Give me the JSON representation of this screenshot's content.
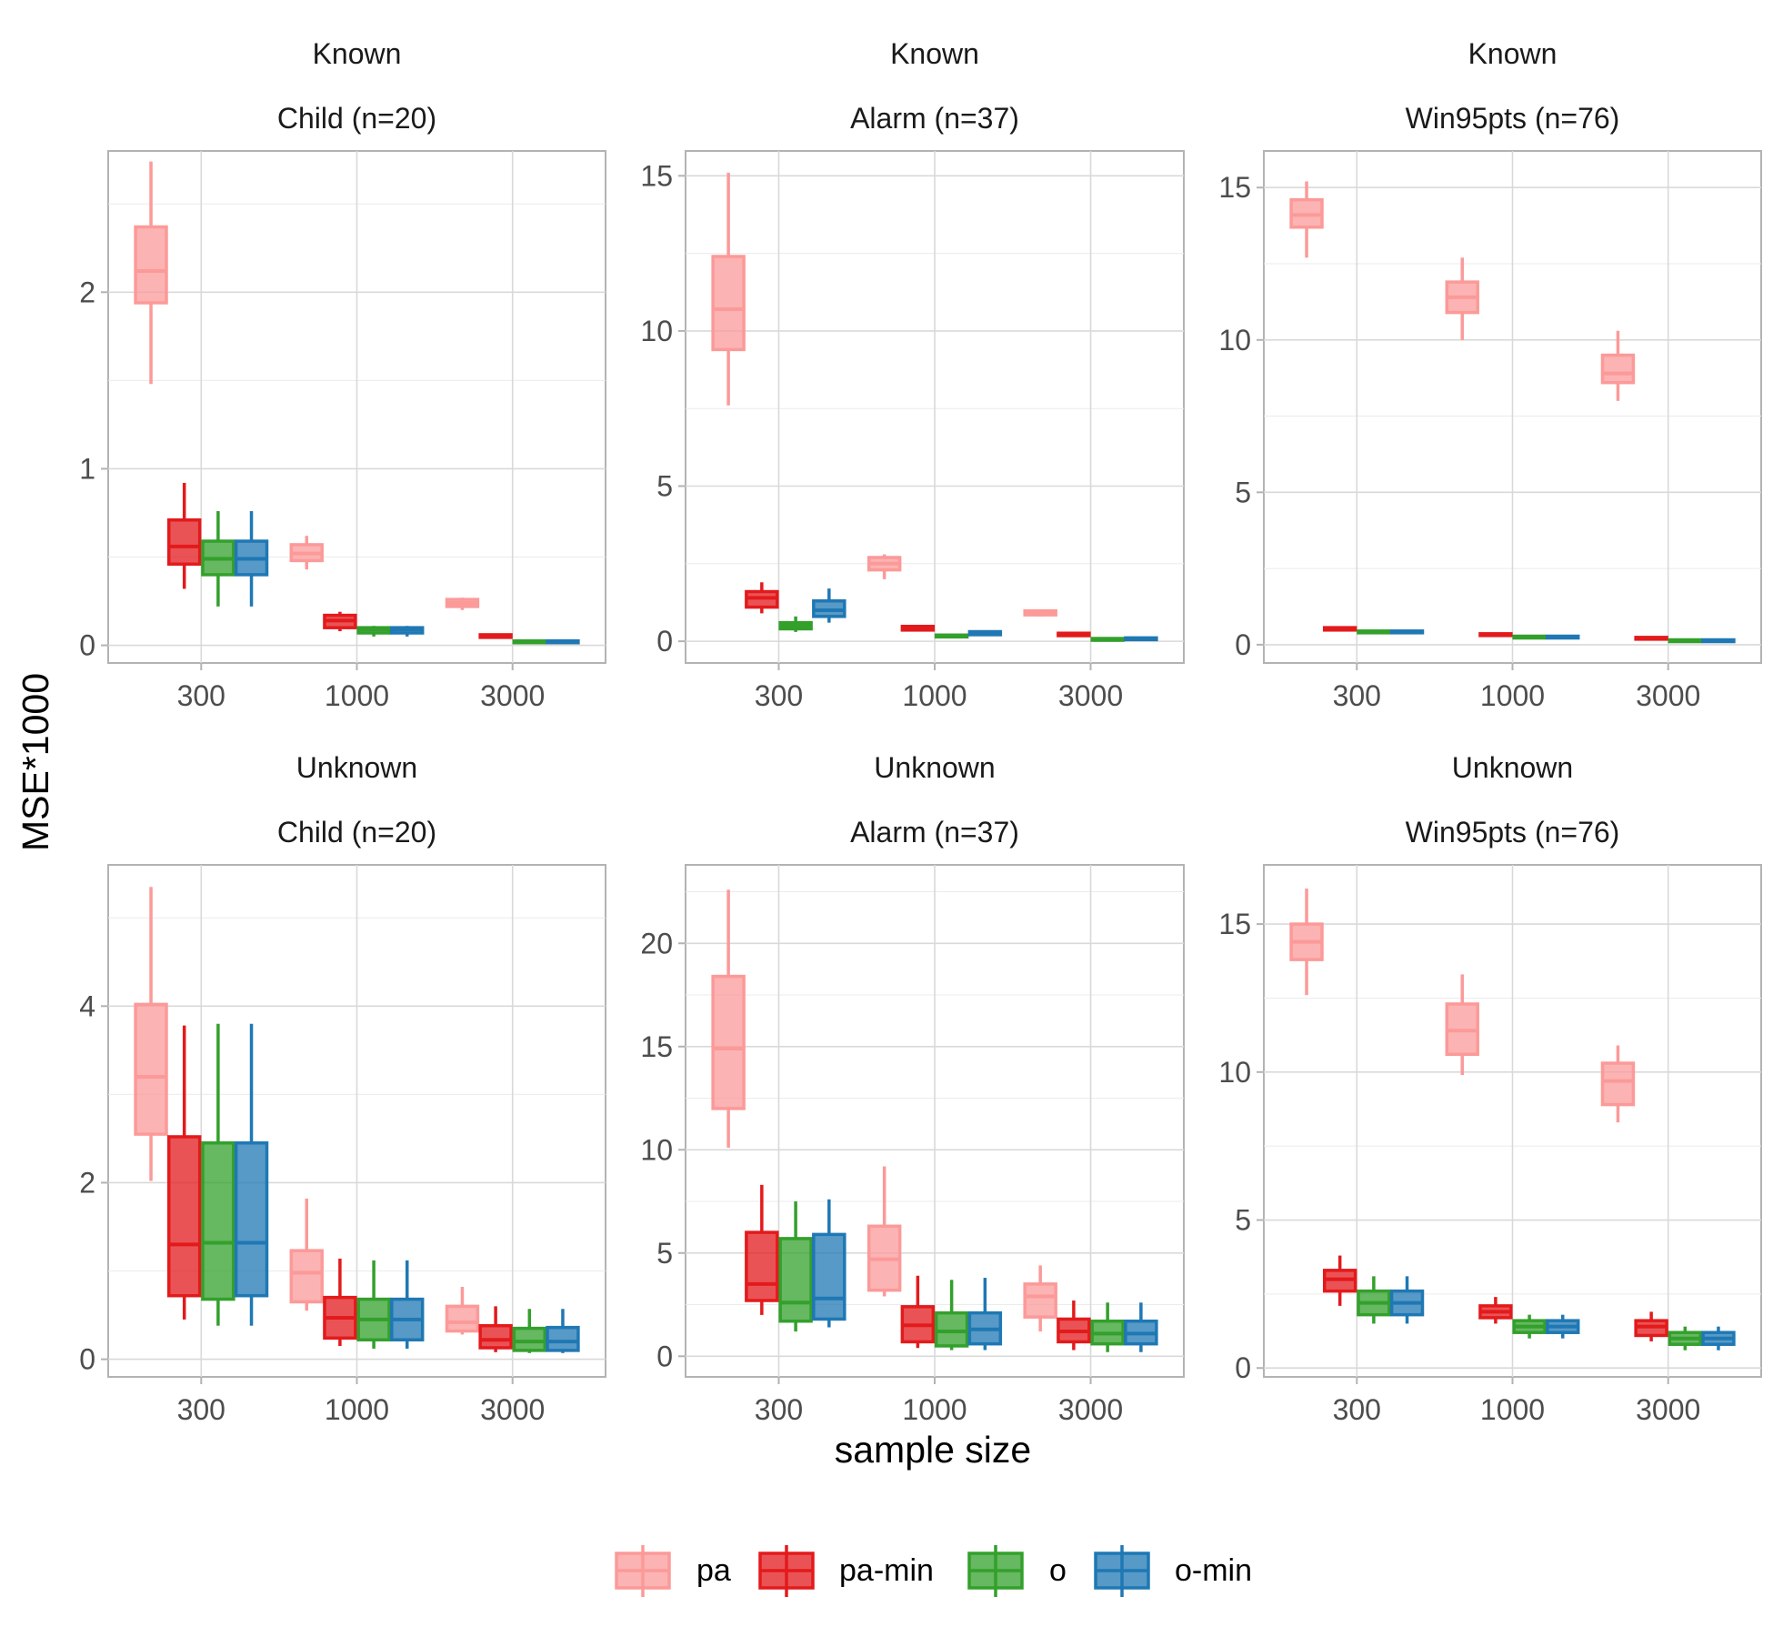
{
  "chart_data": {
    "type": "boxplot",
    "ylabel": "MSE*1000",
    "xlabel": "sample size",
    "categories": [
      "300",
      "1000",
      "3000"
    ],
    "legend": [
      {
        "name": "pa",
        "color": "#FB9A99"
      },
      {
        "name": "pa-min",
        "color": "#E31A1C"
      },
      {
        "name": "o",
        "color": "#33A02C"
      },
      {
        "name": "o-min",
        "color": "#1F78B4"
      }
    ],
    "panels": [
      {
        "row_label": "Known",
        "title": "Child (n=20)",
        "ylim": [
          -0.1,
          2.8
        ],
        "yticks": [
          0,
          1,
          2
        ],
        "boxes": [
          {
            "method": "pa",
            "category": "300",
            "min": 1.48,
            "q1": 1.94,
            "median": 2.12,
            "q3": 2.37,
            "max": 2.74
          },
          {
            "method": "pa-min",
            "category": "300",
            "min": 0.32,
            "q1": 0.46,
            "median": 0.56,
            "q3": 0.71,
            "max": 0.92
          },
          {
            "method": "o",
            "category": "300",
            "min": 0.22,
            "q1": 0.4,
            "median": 0.49,
            "q3": 0.59,
            "max": 0.76
          },
          {
            "method": "o-min",
            "category": "300",
            "min": 0.22,
            "q1": 0.4,
            "median": 0.49,
            "q3": 0.59,
            "max": 0.76
          },
          {
            "method": "pa",
            "category": "1000",
            "min": 0.43,
            "q1": 0.48,
            "median": 0.52,
            "q3": 0.57,
            "max": 0.62
          },
          {
            "method": "pa-min",
            "category": "1000",
            "min": 0.08,
            "q1": 0.1,
            "median": 0.14,
            "q3": 0.17,
            "max": 0.19
          },
          {
            "method": "o",
            "category": "1000",
            "min": 0.05,
            "q1": 0.07,
            "median": 0.09,
            "q3": 0.1,
            "max": 0.11
          },
          {
            "method": "o-min",
            "category": "1000",
            "min": 0.05,
            "q1": 0.07,
            "median": 0.09,
            "q3": 0.1,
            "max": 0.11
          },
          {
            "method": "pa",
            "category": "3000",
            "min": 0.2,
            "q1": 0.22,
            "median": 0.24,
            "q3": 0.26,
            "max": 0.27
          },
          {
            "method": "pa-min",
            "category": "3000",
            "min": 0.04,
            "q1": 0.045,
            "median": 0.05,
            "q3": 0.06,
            "max": 0.065
          },
          {
            "method": "o",
            "category": "3000",
            "min": 0.01,
            "q1": 0.015,
            "median": 0.02,
            "q3": 0.025,
            "max": 0.03
          },
          {
            "method": "o-min",
            "category": "3000",
            "min": 0.01,
            "q1": 0.015,
            "median": 0.02,
            "q3": 0.025,
            "max": 0.03
          }
        ]
      },
      {
        "row_label": "Known",
        "title": "Alarm (n=37)",
        "ylim": [
          -0.7,
          15.8
        ],
        "yticks": [
          0,
          5,
          10,
          15
        ],
        "boxes": [
          {
            "method": "pa",
            "category": "300",
            "min": 7.6,
            "q1": 9.4,
            "median": 10.7,
            "q3": 12.4,
            "max": 15.1
          },
          {
            "method": "pa-min",
            "category": "300",
            "min": 0.9,
            "q1": 1.1,
            "median": 1.4,
            "q3": 1.6,
            "max": 1.9
          },
          {
            "method": "o",
            "category": "300",
            "min": 0.3,
            "q1": 0.4,
            "median": 0.5,
            "q3": 0.6,
            "max": 0.8
          },
          {
            "method": "o-min",
            "category": "300",
            "min": 0.6,
            "q1": 0.8,
            "median": 1.0,
            "q3": 1.3,
            "max": 1.7
          },
          {
            "method": "pa",
            "category": "1000",
            "min": 2.0,
            "q1": 2.3,
            "median": 2.5,
            "q3": 2.7,
            "max": 2.8
          },
          {
            "method": "pa-min",
            "category": "1000",
            "min": 0.32,
            "q1": 0.36,
            "median": 0.42,
            "q3": 0.48,
            "max": 0.52
          },
          {
            "method": "o",
            "category": "1000",
            "min": 0.12,
            "q1": 0.14,
            "median": 0.17,
            "q3": 0.2,
            "max": 0.23
          },
          {
            "method": "o-min",
            "category": "1000",
            "min": 0.18,
            "q1": 0.21,
            "median": 0.26,
            "q3": 0.31,
            "max": 0.35
          },
          {
            "method": "pa",
            "category": "3000",
            "min": 0.8,
            "q1": 0.85,
            "median": 0.92,
            "q3": 0.98,
            "max": 1.02
          },
          {
            "method": "pa-min",
            "category": "3000",
            "min": 0.15,
            "q1": 0.18,
            "median": 0.22,
            "q3": 0.26,
            "max": 0.3
          },
          {
            "method": "o",
            "category": "3000",
            "min": 0.03,
            "q1": 0.05,
            "median": 0.07,
            "q3": 0.09,
            "max": 0.11
          },
          {
            "method": "o-min",
            "category": "3000",
            "min": 0.05,
            "q1": 0.07,
            "median": 0.09,
            "q3": 0.11,
            "max": 0.13
          }
        ]
      },
      {
        "row_label": "Known",
        "title": "Win95pts (n=76)",
        "ylim": [
          -0.6,
          16.2
        ],
        "yticks": [
          0,
          5,
          10,
          15
        ],
        "boxes": [
          {
            "method": "pa",
            "category": "300",
            "min": 12.7,
            "q1": 13.7,
            "median": 14.1,
            "q3": 14.6,
            "max": 15.2
          },
          {
            "method": "pa-min",
            "category": "300",
            "min": 0.44,
            "q1": 0.48,
            "median": 0.52,
            "q3": 0.56,
            "max": 0.58
          },
          {
            "method": "o",
            "category": "300",
            "min": 0.36,
            "q1": 0.39,
            "median": 0.42,
            "q3": 0.45,
            "max": 0.47
          },
          {
            "method": "o-min",
            "category": "300",
            "min": 0.36,
            "q1": 0.39,
            "median": 0.42,
            "q3": 0.45,
            "max": 0.47
          },
          {
            "method": "pa",
            "category": "1000",
            "min": 10.0,
            "q1": 10.9,
            "median": 11.4,
            "q3": 11.9,
            "max": 12.7
          },
          {
            "method": "pa-min",
            "category": "1000",
            "min": 0.28,
            "q1": 0.31,
            "median": 0.33,
            "q3": 0.36,
            "max": 0.38
          },
          {
            "method": "o",
            "category": "1000",
            "min": 0.21,
            "q1": 0.24,
            "median": 0.26,
            "q3": 0.28,
            "max": 0.3
          },
          {
            "method": "o-min",
            "category": "1000",
            "min": 0.21,
            "q1": 0.24,
            "median": 0.26,
            "q3": 0.28,
            "max": 0.3
          },
          {
            "method": "pa",
            "category": "3000",
            "min": 8.0,
            "q1": 8.6,
            "median": 8.9,
            "q3": 9.5,
            "max": 10.3
          },
          {
            "method": "pa-min",
            "category": "3000",
            "min": 0.18,
            "q1": 0.2,
            "median": 0.22,
            "q3": 0.24,
            "max": 0.25
          },
          {
            "method": "o",
            "category": "3000",
            "min": 0.11,
            "q1": 0.12,
            "median": 0.14,
            "q3": 0.16,
            "max": 0.17
          },
          {
            "method": "o-min",
            "category": "3000",
            "min": 0.11,
            "q1": 0.12,
            "median": 0.14,
            "q3": 0.16,
            "max": 0.17
          }
        ]
      },
      {
        "row_label": "Unknown",
        "title": "Child (n=20)",
        "ylim": [
          -0.2,
          5.6
        ],
        "yticks": [
          0,
          2,
          4
        ],
        "boxes": [
          {
            "method": "pa",
            "category": "300",
            "min": 2.02,
            "q1": 2.55,
            "median": 3.2,
            "q3": 4.02,
            "max": 5.35
          },
          {
            "method": "pa-min",
            "category": "300",
            "min": 0.45,
            "q1": 0.72,
            "median": 1.3,
            "q3": 2.52,
            "max": 3.78
          },
          {
            "method": "o",
            "category": "300",
            "min": 0.38,
            "q1": 0.68,
            "median": 1.32,
            "q3": 2.45,
            "max": 3.8
          },
          {
            "method": "o-min",
            "category": "300",
            "min": 0.38,
            "q1": 0.72,
            "median": 1.32,
            "q3": 2.45,
            "max": 3.8
          },
          {
            "method": "pa",
            "category": "1000",
            "min": 0.55,
            "q1": 0.65,
            "median": 0.98,
            "q3": 1.23,
            "max": 1.82
          },
          {
            "method": "pa-min",
            "category": "1000",
            "min": 0.15,
            "q1": 0.24,
            "median": 0.47,
            "q3": 0.7,
            "max": 1.14
          },
          {
            "method": "o",
            "category": "1000",
            "min": 0.12,
            "q1": 0.22,
            "median": 0.45,
            "q3": 0.68,
            "max": 1.12
          },
          {
            "method": "o-min",
            "category": "1000",
            "min": 0.12,
            "q1": 0.22,
            "median": 0.45,
            "q3": 0.68,
            "max": 1.12
          },
          {
            "method": "pa",
            "category": "3000",
            "min": 0.28,
            "q1": 0.32,
            "median": 0.42,
            "q3": 0.6,
            "max": 0.82
          },
          {
            "method": "pa-min",
            "category": "3000",
            "min": 0.08,
            "q1": 0.13,
            "median": 0.22,
            "q3": 0.38,
            "max": 0.6
          },
          {
            "method": "o",
            "category": "3000",
            "min": 0.07,
            "q1": 0.1,
            "median": 0.2,
            "q3": 0.35,
            "max": 0.57
          },
          {
            "method": "o-min",
            "category": "3000",
            "min": 0.07,
            "q1": 0.1,
            "median": 0.2,
            "q3": 0.36,
            "max": 0.57
          }
        ]
      },
      {
        "row_label": "Unknown",
        "title": "Alarm (n=37)",
        "ylim": [
          -1.0,
          23.8
        ],
        "yticks": [
          0,
          5,
          10,
          15,
          20
        ],
        "boxes": [
          {
            "method": "pa",
            "category": "300",
            "min": 10.1,
            "q1": 12.0,
            "median": 14.9,
            "q3": 18.4,
            "max": 22.6
          },
          {
            "method": "pa-min",
            "category": "300",
            "min": 2.0,
            "q1": 2.7,
            "median": 3.5,
            "q3": 6.0,
            "max": 8.3
          },
          {
            "method": "o",
            "category": "300",
            "min": 1.2,
            "q1": 1.7,
            "median": 2.6,
            "q3": 5.7,
            "max": 7.5
          },
          {
            "method": "o-min",
            "category": "300",
            "min": 1.4,
            "q1": 1.8,
            "median": 2.8,
            "q3": 5.9,
            "max": 7.6
          },
          {
            "method": "pa",
            "category": "1000",
            "min": 2.9,
            "q1": 3.2,
            "median": 4.7,
            "q3": 6.3,
            "max": 9.2
          },
          {
            "method": "pa-min",
            "category": "1000",
            "min": 0.4,
            "q1": 0.7,
            "median": 1.5,
            "q3": 2.4,
            "max": 3.9
          },
          {
            "method": "o",
            "category": "1000",
            "min": 0.3,
            "q1": 0.5,
            "median": 1.2,
            "q3": 2.1,
            "max": 3.7
          },
          {
            "method": "o-min",
            "category": "1000",
            "min": 0.3,
            "q1": 0.6,
            "median": 1.3,
            "q3": 2.1,
            "max": 3.8
          },
          {
            "method": "pa",
            "category": "3000",
            "min": 1.2,
            "q1": 1.9,
            "median": 2.9,
            "q3": 3.5,
            "max": 4.4
          },
          {
            "method": "pa-min",
            "category": "3000",
            "min": 0.3,
            "q1": 0.7,
            "median": 1.2,
            "q3": 1.8,
            "max": 2.7
          },
          {
            "method": "o",
            "category": "3000",
            "min": 0.2,
            "q1": 0.6,
            "median": 1.1,
            "q3": 1.7,
            "max": 2.6
          },
          {
            "method": "o-min",
            "category": "3000",
            "min": 0.2,
            "q1": 0.6,
            "median": 1.1,
            "q3": 1.7,
            "max": 2.6
          }
        ]
      },
      {
        "row_label": "Unknown",
        "title": "Win95pts (n=76)",
        "ylim": [
          -0.3,
          17.0
        ],
        "yticks": [
          0,
          5,
          10,
          15
        ],
        "boxes": [
          {
            "method": "pa",
            "category": "300",
            "min": 12.6,
            "q1": 13.8,
            "median": 14.4,
            "q3": 15.0,
            "max": 16.2
          },
          {
            "method": "pa-min",
            "category": "300",
            "min": 2.1,
            "q1": 2.6,
            "median": 3.0,
            "q3": 3.3,
            "max": 3.8
          },
          {
            "method": "o",
            "category": "300",
            "min": 1.5,
            "q1": 1.8,
            "median": 2.2,
            "q3": 2.6,
            "max": 3.1
          },
          {
            "method": "o-min",
            "category": "300",
            "min": 1.5,
            "q1": 1.8,
            "median": 2.2,
            "q3": 2.6,
            "max": 3.1
          },
          {
            "method": "pa",
            "category": "1000",
            "min": 9.9,
            "q1": 10.6,
            "median": 11.4,
            "q3": 12.3,
            "max": 13.3
          },
          {
            "method": "pa-min",
            "category": "1000",
            "min": 1.5,
            "q1": 1.7,
            "median": 1.9,
            "q3": 2.1,
            "max": 2.4
          },
          {
            "method": "o",
            "category": "1000",
            "min": 1.0,
            "q1": 1.2,
            "median": 1.4,
            "q3": 1.6,
            "max": 1.8
          },
          {
            "method": "o-min",
            "category": "1000",
            "min": 1.0,
            "q1": 1.2,
            "median": 1.4,
            "q3": 1.6,
            "max": 1.8
          },
          {
            "method": "pa",
            "category": "3000",
            "min": 8.3,
            "q1": 8.9,
            "median": 9.7,
            "q3": 10.3,
            "max": 10.9
          },
          {
            "method": "pa-min",
            "category": "3000",
            "min": 0.9,
            "q1": 1.1,
            "median": 1.4,
            "q3": 1.6,
            "max": 1.9
          },
          {
            "method": "o",
            "category": "3000",
            "min": 0.6,
            "q1": 0.8,
            "median": 1.0,
            "q3": 1.2,
            "max": 1.4
          },
          {
            "method": "o-min",
            "category": "3000",
            "min": 0.6,
            "q1": 0.8,
            "median": 1.0,
            "q3": 1.2,
            "max": 1.4
          }
        ]
      }
    ]
  }
}
